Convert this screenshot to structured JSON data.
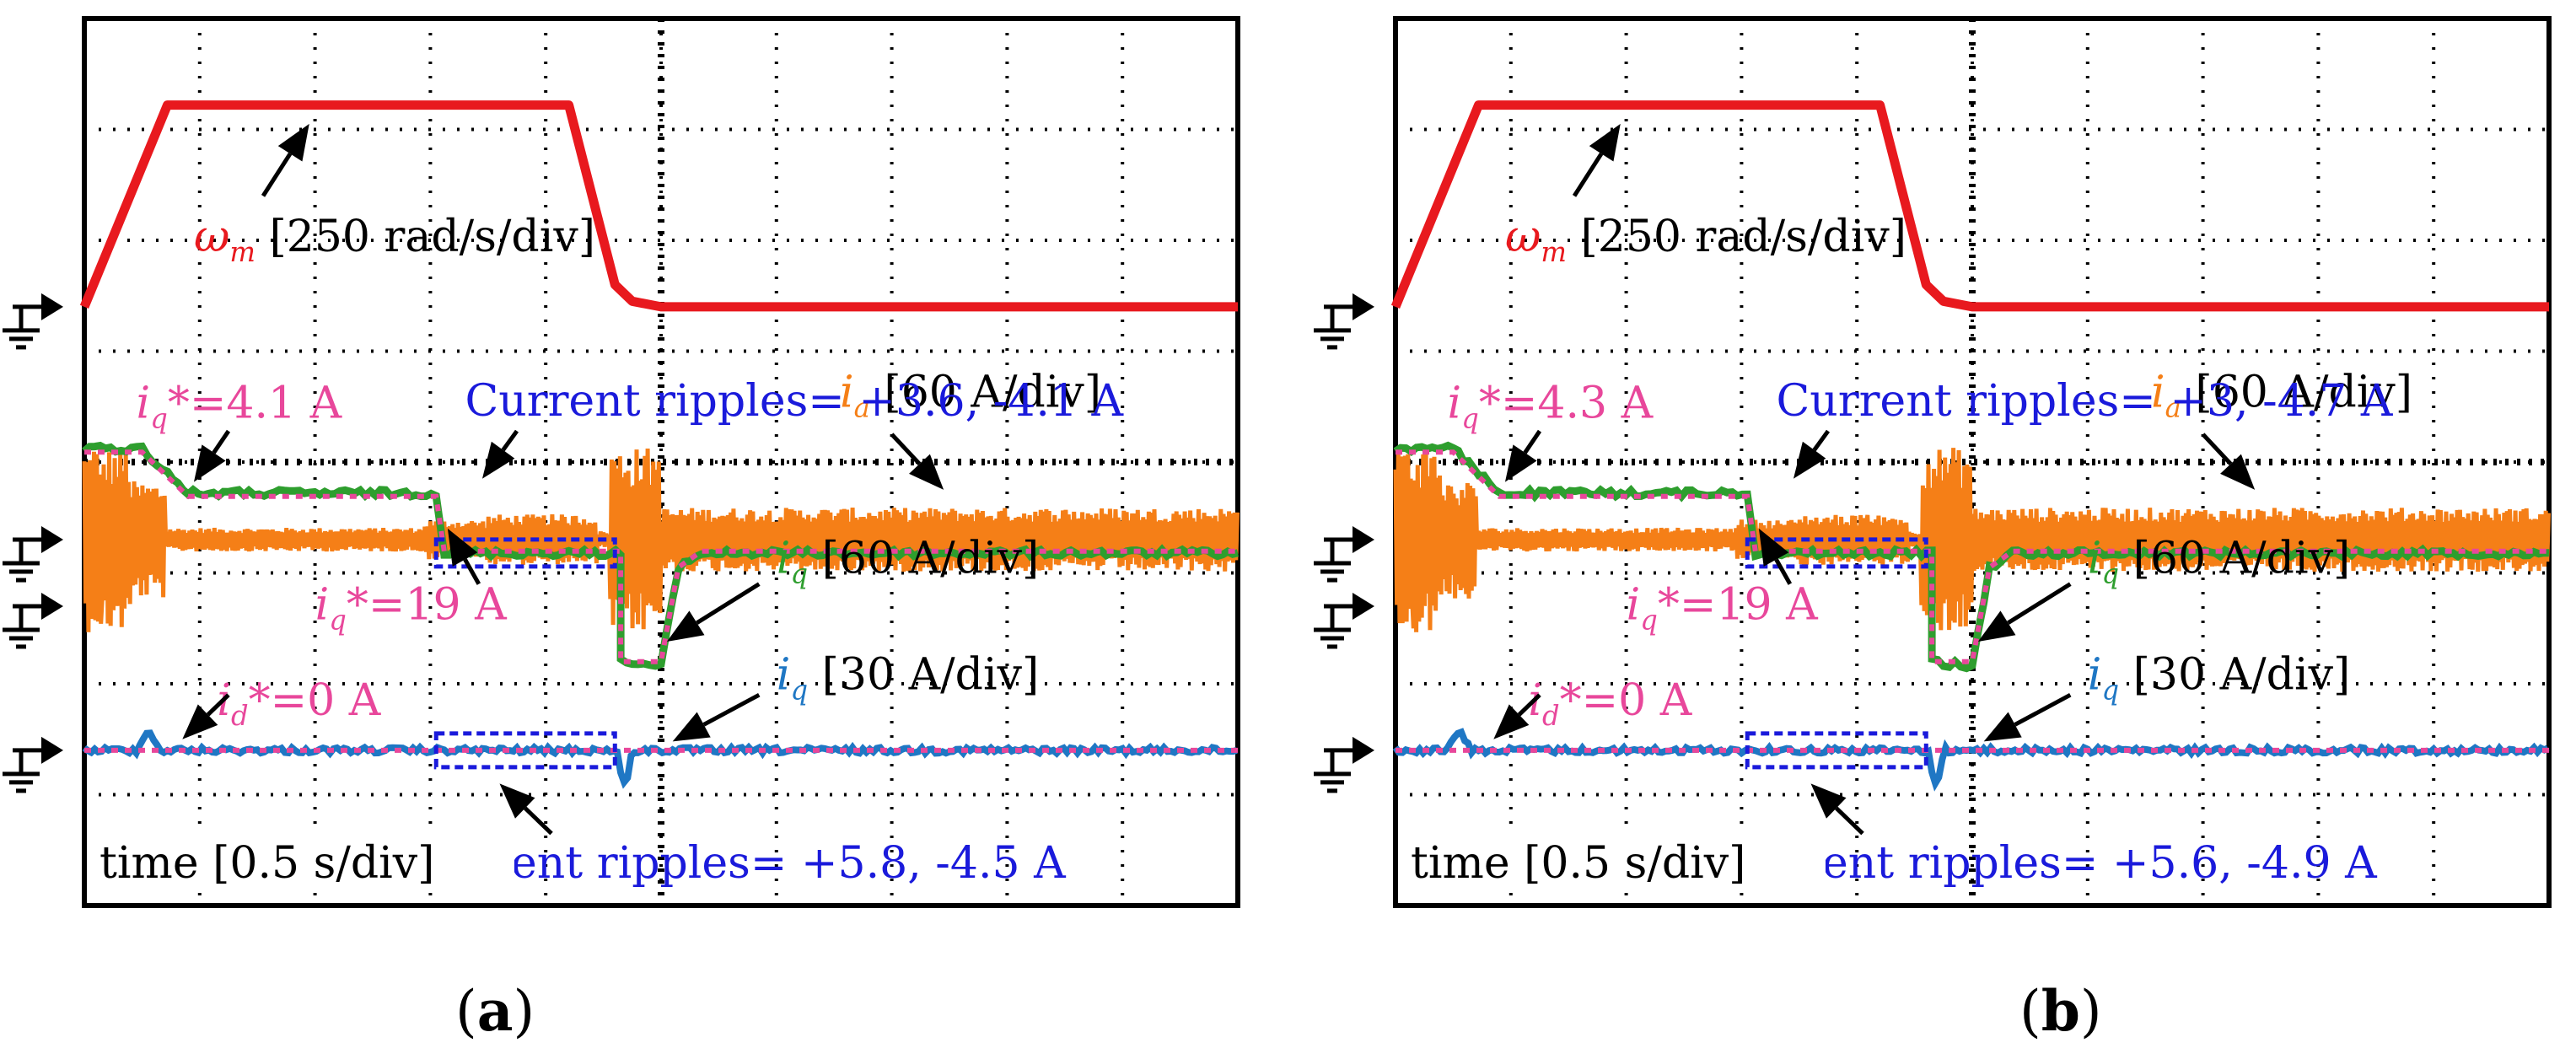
{
  "chart_data": [
    {
      "type": "line",
      "panel_label": "a",
      "x_label": "time [0.5 s/div]",
      "series": [
        {
          "name": "ωm",
          "unit": "[250 rad/s/div]",
          "color": "#e8191e",
          "x": [
            0.0,
            0.7,
            1.2,
            3.2,
            3.0,
            3.3,
            4.1,
            5.0
          ],
          "y": [
            0,
            4,
            4,
            4,
            4,
            2,
            0,
            0
          ]
        },
        {
          "name": "ia",
          "unit": "[60 A/div]",
          "color": "#f57f17",
          "envelope": [
            [
              0,
              0.65,
              4.4
            ],
            [
              0.65,
              3.0,
              0.6
            ],
            [
              3.0,
              3.7,
              1.0
            ],
            [
              3.7,
              4.0,
              3.0
            ],
            [
              4.0,
              5.5,
              1.6
            ]
          ]
        },
        {
          "name": "iq",
          "unit": "[60 A/div]",
          "color": "#2e9e2e",
          "x": [
            0,
            0.4,
            0.75,
            3.1,
            3.15,
            4.6,
            4.6,
            5.0,
            5.1,
            5.5,
            10
          ],
          "y": [
            1.1,
            1.1,
            0,
            0,
            0.35,
            0.35,
            -1.0,
            -0.9,
            0.35,
            0.35,
            0.35
          ]
        },
        {
          "name": "id",
          "unit": "[30 A/div]",
          "color": "#1f77c4",
          "x": [
            0,
            10
          ],
          "y": [
            0,
            0
          ]
        }
      ],
      "references": [
        {
          "label": "iq*=4.1 A"
        },
        {
          "label": "iq*=19 A"
        },
        {
          "label": "id*=0 A"
        }
      ],
      "annotations": [
        "Current ripples= +3.6, -4.1 A",
        "Current ripples= +5.8, -4.5 A"
      ]
    },
    {
      "type": "line",
      "panel_label": "b",
      "x_label": "time [0.5 s/div]",
      "series": [
        {
          "name": "ωm",
          "unit": "[250 rad/s/div]",
          "color": "#e8191e"
        },
        {
          "name": "ia",
          "unit": "[60 A/div]",
          "color": "#f57f17"
        },
        {
          "name": "iq",
          "unit": "[60 A/div]",
          "color": "#2e9e2e"
        },
        {
          "name": "id",
          "unit": "[30 A/div]",
          "color": "#1f77c4"
        }
      ],
      "references": [
        {
          "label": "iq*=4.3 A"
        },
        {
          "label": "iq*=19 A"
        },
        {
          "label": "id*=0 A"
        }
      ],
      "annotations": [
        "Current ripples= +3, -4.7 A",
        "Current ripples= +5.6, -4.9 A"
      ]
    }
  ],
  "colors": {
    "speed": "#e8191e",
    "ia": "#f57f17",
    "iq": "#2e9e2e",
    "id": "#1f77c4",
    "ref": "#e8479b",
    "ripple": "#1a1adb",
    "arrow": "#000000"
  }
}
